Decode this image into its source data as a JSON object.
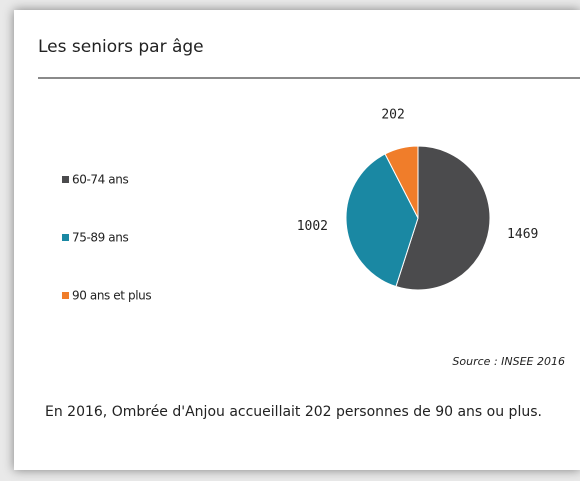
{
  "chart_data": {
    "type": "pie",
    "title": "Les seniors par âge",
    "categories": [
      "60-74 ans",
      "75-89 ans",
      "90 ans et plus"
    ],
    "values": [
      1469,
      1002,
      202
    ],
    "colors": [
      "#4b4b4d",
      "#1a88a3",
      "#f07d2a"
    ],
    "legend": "left",
    "source": "Source : INSEE 2016"
  },
  "caption": "En 2016, Ombrée d'Anjou accueillait  202 personnes de 90 ans ou plus."
}
